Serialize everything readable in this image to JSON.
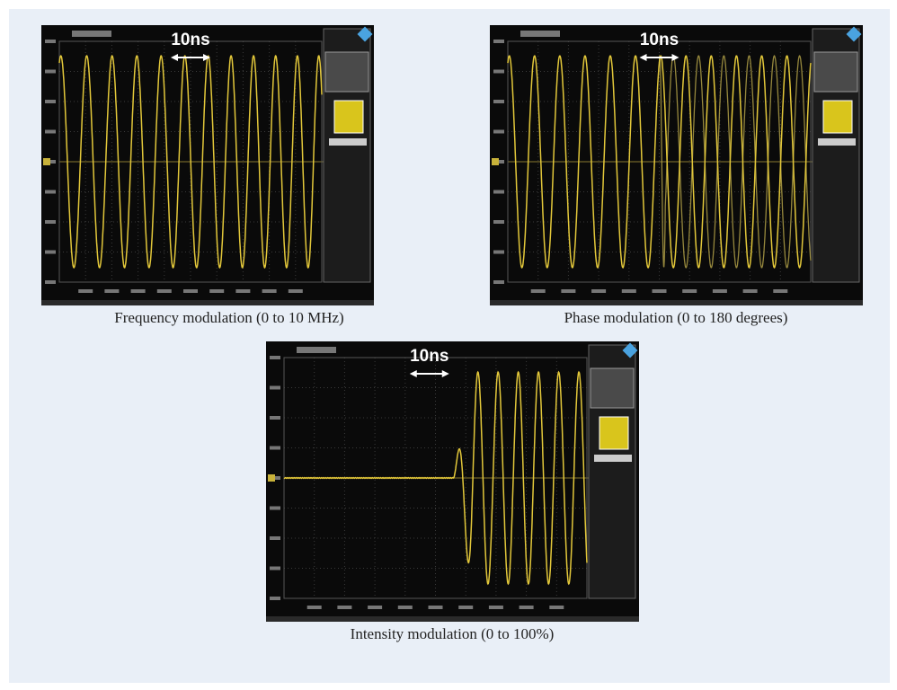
{
  "panels": [
    {
      "scale": "10ns",
      "caption": "Frequency modulation (0 to 10 MHz)"
    },
    {
      "scale": "10ns",
      "caption": "Phase modulation (0 to 180 degrees)"
    },
    {
      "scale": "10ns",
      "caption": "Intensity modulation (0 to 100%)"
    }
  ]
}
